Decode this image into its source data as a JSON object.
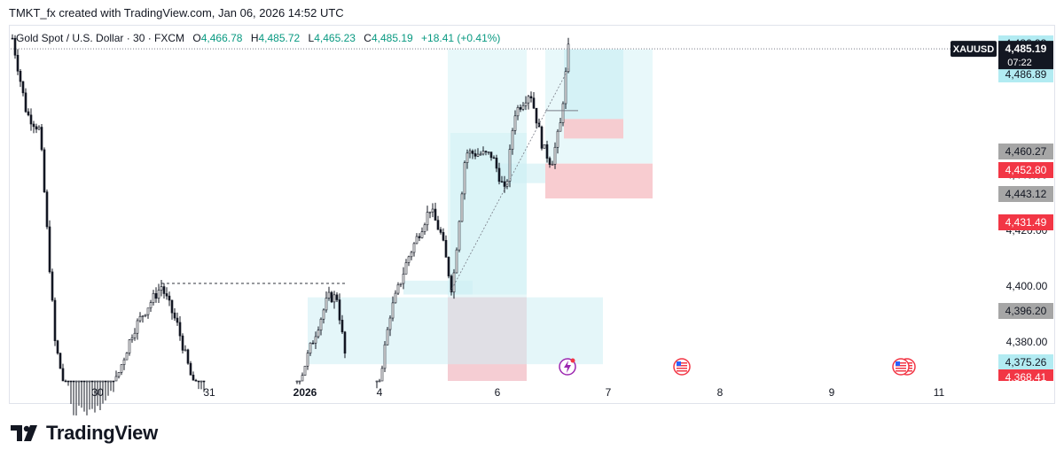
{
  "header": {
    "attribution": "TMKT_fx created with TradingView.com, Jan 06, 2026 14:52 UTC"
  },
  "legend": {
    "symbol": "Gold Spot / U.S. Dollar · 30 · FXCM",
    "o_label": "O",
    "o_value": "4,466.78",
    "h_label": "H",
    "h_value": "4,485.72",
    "l_label": "L",
    "l_value": "4,465.23",
    "c_label": "C",
    "c_value": "4,485.19",
    "change": "+18.41 (+0.41%)"
  },
  "colors": {
    "up": "#089981",
    "candle": "#131722",
    "zone_blue": "#cdeff4",
    "zone_red": "#f7c6cb",
    "label_blue": "#b2ebf2",
    "label_gray": "#a6a6a6",
    "label_red": "#f23645",
    "label_dark": "#131722"
  },
  "chart_data": {
    "type": "candlestick",
    "symbol": "XAUUSD",
    "x_tick_labels": [
      "30",
      "31",
      "2026",
      "4",
      "6",
      "7",
      "8",
      "9",
      "11"
    ],
    "y_tick_labels": [
      "4,380.00",
      "4,400.00",
      "4,420.00",
      "4,440.00"
    ],
    "ylim": [
      4366,
      4490
    ],
    "last_price": {
      "label": "XAUUSD",
      "price": "4,485.19",
      "countdown": "07:22"
    },
    "price_labels": [
      {
        "value": "4,486.93",
        "style": "blue"
      },
      {
        "value": "4,486.93",
        "style": "blue"
      },
      {
        "value": "4,486.89",
        "style": "blue"
      },
      {
        "value": "4,460.27",
        "style": "gray"
      },
      {
        "value": "4,452.80",
        "style": "red"
      },
      {
        "value": "4,443.12",
        "style": "gray"
      },
      {
        "value": "4,431.49",
        "style": "red"
      },
      {
        "value": "4,396.20",
        "style": "gray"
      },
      {
        "value": "4,375.26",
        "style": "blue"
      },
      {
        "value": "4,368.41",
        "style": "red"
      }
    ],
    "events": [
      {
        "icon": "lightning-event-icon",
        "date": "6"
      },
      {
        "icon": "us-flag-event-icon",
        "date": "7"
      },
      {
        "icon": "us-flag-event-icon",
        "date": "9"
      }
    ]
  },
  "footer": {
    "brand": "TradingView"
  }
}
